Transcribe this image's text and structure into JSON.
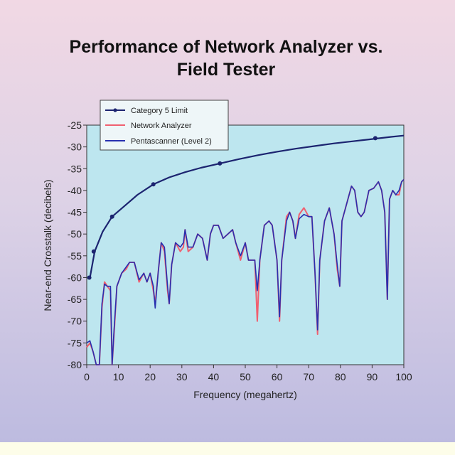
{
  "chart_data": {
    "type": "line",
    "title_lines": [
      "Performance of Network Analyzer vs.",
      "Field Tester"
    ],
    "xlabel": "Frequency (megahertz)",
    "ylabel": "Near-end Crosstalk (decibels)",
    "xlim": [
      0,
      100
    ],
    "ylim": [
      -80,
      -25
    ],
    "xticks": [
      "0",
      "10",
      "20",
      "30",
      "40",
      "50",
      "60",
      "70",
      "80",
      "90",
      "100"
    ],
    "yticks": [
      "-25",
      "-30",
      "-35",
      "-40",
      "-45",
      "-50",
      "-55",
      "-60",
      "-65",
      "-70",
      "-75",
      "-80"
    ],
    "grid": false,
    "legend_position": "top-left",
    "colors": {
      "plot_bg": "#bde6ef",
      "category5": "#1c2470",
      "network": "#f06070",
      "pentascanner": "#2830b0"
    },
    "series": [
      {
        "name": "Category 5 Limit",
        "x": [
          1,
          2.5,
          5,
          8,
          12,
          16,
          21,
          26,
          31,
          36,
          42,
          48,
          54,
          60,
          66,
          72,
          78,
          84,
          90,
          96,
          100
        ],
        "values": [
          -60,
          -54,
          -49.5,
          -46,
          -43.5,
          -41,
          -38.6,
          -37,
          -35.8,
          -34.8,
          -33.8,
          -32.8,
          -31.9,
          -31.1,
          -30.4,
          -29.8,
          -29.2,
          -28.7,
          -28.2,
          -27.7,
          -27.4
        ],
        "markers_x": [
          0.8,
          2.2,
          8,
          21,
          42,
          91
        ],
        "markers_y": [
          -60,
          -54,
          -46,
          -38.6,
          -33.8,
          -28
        ]
      },
      {
        "name": "Network Analyzer",
        "x": [
          0,
          1,
          2,
          3,
          4,
          4.8,
          5.6,
          6.5,
          7.5,
          8,
          8.6,
          9.5,
          11,
          12.5,
          13.5,
          15,
          16.5,
          18,
          19,
          20,
          21,
          21.6,
          22.5,
          23.5,
          24.5,
          25.5,
          26,
          26.8,
          28,
          29.5,
          30.5,
          31,
          32,
          33.5,
          35,
          36.5,
          38,
          39,
          40,
          41.5,
          43,
          44.5,
          46,
          47,
          48.5,
          50,
          51,
          52,
          53,
          53.8,
          54.6,
          56,
          57.5,
          58.5,
          60,
          60.8,
          61.5,
          63,
          64,
          65,
          65.8,
          67,
          68.5,
          70,
          71,
          72,
          72.8,
          73.5,
          75,
          76.5,
          78,
          79,
          79.8,
          80.5,
          82,
          83.5,
          84.5,
          85.5,
          86.5,
          87.5,
          89,
          90.5,
          92,
          93,
          94,
          94.8,
          95.5,
          96.5,
          97.5,
          98.5,
          99.3,
          100
        ],
        "values": [
          -76,
          -75,
          -77,
          -81,
          -81,
          -67,
          -61,
          -62,
          -63,
          -82,
          -73,
          -62,
          -59,
          -58,
          -56.5,
          -56.5,
          -61,
          -59,
          -61,
          -59,
          -63,
          -66,
          -59,
          -52,
          -54,
          -63,
          -66,
          -57,
          -52,
          -54,
          -53,
          -49,
          -54,
          -53,
          -50,
          -51,
          -56,
          -50,
          -48,
          -48,
          -51,
          -50,
          -49,
          -52,
          -56,
          -52,
          -56,
          -56,
          -56,
          -70,
          -56,
          -48,
          -47,
          -48,
          -56,
          -70,
          -56,
          -46,
          -45,
          -47,
          -51,
          -45.5,
          -44,
          -46,
          -46,
          -59,
          -73,
          -56,
          -47,
          -44,
          -50,
          -58,
          -62,
          -47,
          -43,
          -39,
          -40,
          -45,
          -46,
          -45,
          -40,
          -39.5,
          -38,
          -40,
          -45,
          -65,
          -42,
          -40,
          -41,
          -41,
          -38,
          -37.5
        ]
      },
      {
        "name": "Pentascanner (Level 2)",
        "x": [
          0,
          1,
          2,
          3,
          4,
          4.8,
          5.6,
          6.5,
          7.5,
          8,
          8.6,
          9.5,
          11,
          12.5,
          13.5,
          15,
          16.5,
          18,
          19,
          20,
          21,
          21.6,
          22.5,
          23.5,
          24.5,
          25.5,
          26,
          26.8,
          28,
          29.5,
          30.5,
          31,
          32,
          33.5,
          35,
          36.5,
          38,
          39,
          40,
          41.5,
          43,
          44.5,
          46,
          47,
          48.5,
          50,
          51,
          52,
          53,
          53.8,
          54.6,
          56,
          57.5,
          58.5,
          60,
          60.8,
          61.5,
          63,
          64,
          65,
          65.8,
          67,
          68.5,
          70,
          71,
          72,
          72.8,
          73.5,
          75,
          76.5,
          78,
          79,
          79.8,
          80.5,
          82,
          83.5,
          84.5,
          85.5,
          86.5,
          87.5,
          89,
          90.5,
          92,
          93,
          94,
          94.8,
          95.5,
          96.5,
          97.5,
          98.5,
          99.3,
          100
        ],
        "values": [
          -75,
          -74.5,
          -77,
          -80,
          -81,
          -66,
          -61.5,
          -62,
          -62,
          -81,
          -72,
          -62,
          -59,
          -57.5,
          -56.5,
          -56.5,
          -60.5,
          -59,
          -61,
          -59,
          -62,
          -67,
          -59,
          -52,
          -53,
          -62,
          -66,
          -57,
          -52,
          -53,
          -52,
          -49,
          -53,
          -53,
          -50,
          -51,
          -56,
          -50,
          -48,
          -48,
          -51,
          -50,
          -49,
          -52,
          -55,
          -52,
          -56,
          -56,
          -56,
          -63,
          -56,
          -48,
          -47,
          -48,
          -56,
          -69,
          -56,
          -47,
          -45,
          -47,
          -51,
          -46.5,
          -45.5,
          -46,
          -46,
          -59,
          -72,
          -56,
          -47,
          -44,
          -50,
          -57,
          -62,
          -47,
          -43,
          -39,
          -40,
          -45,
          -46,
          -45,
          -40,
          -39.5,
          -38,
          -40,
          -45,
          -65,
          -42,
          -40,
          -41,
          -40,
          -38,
          -37.5
        ]
      }
    ]
  }
}
